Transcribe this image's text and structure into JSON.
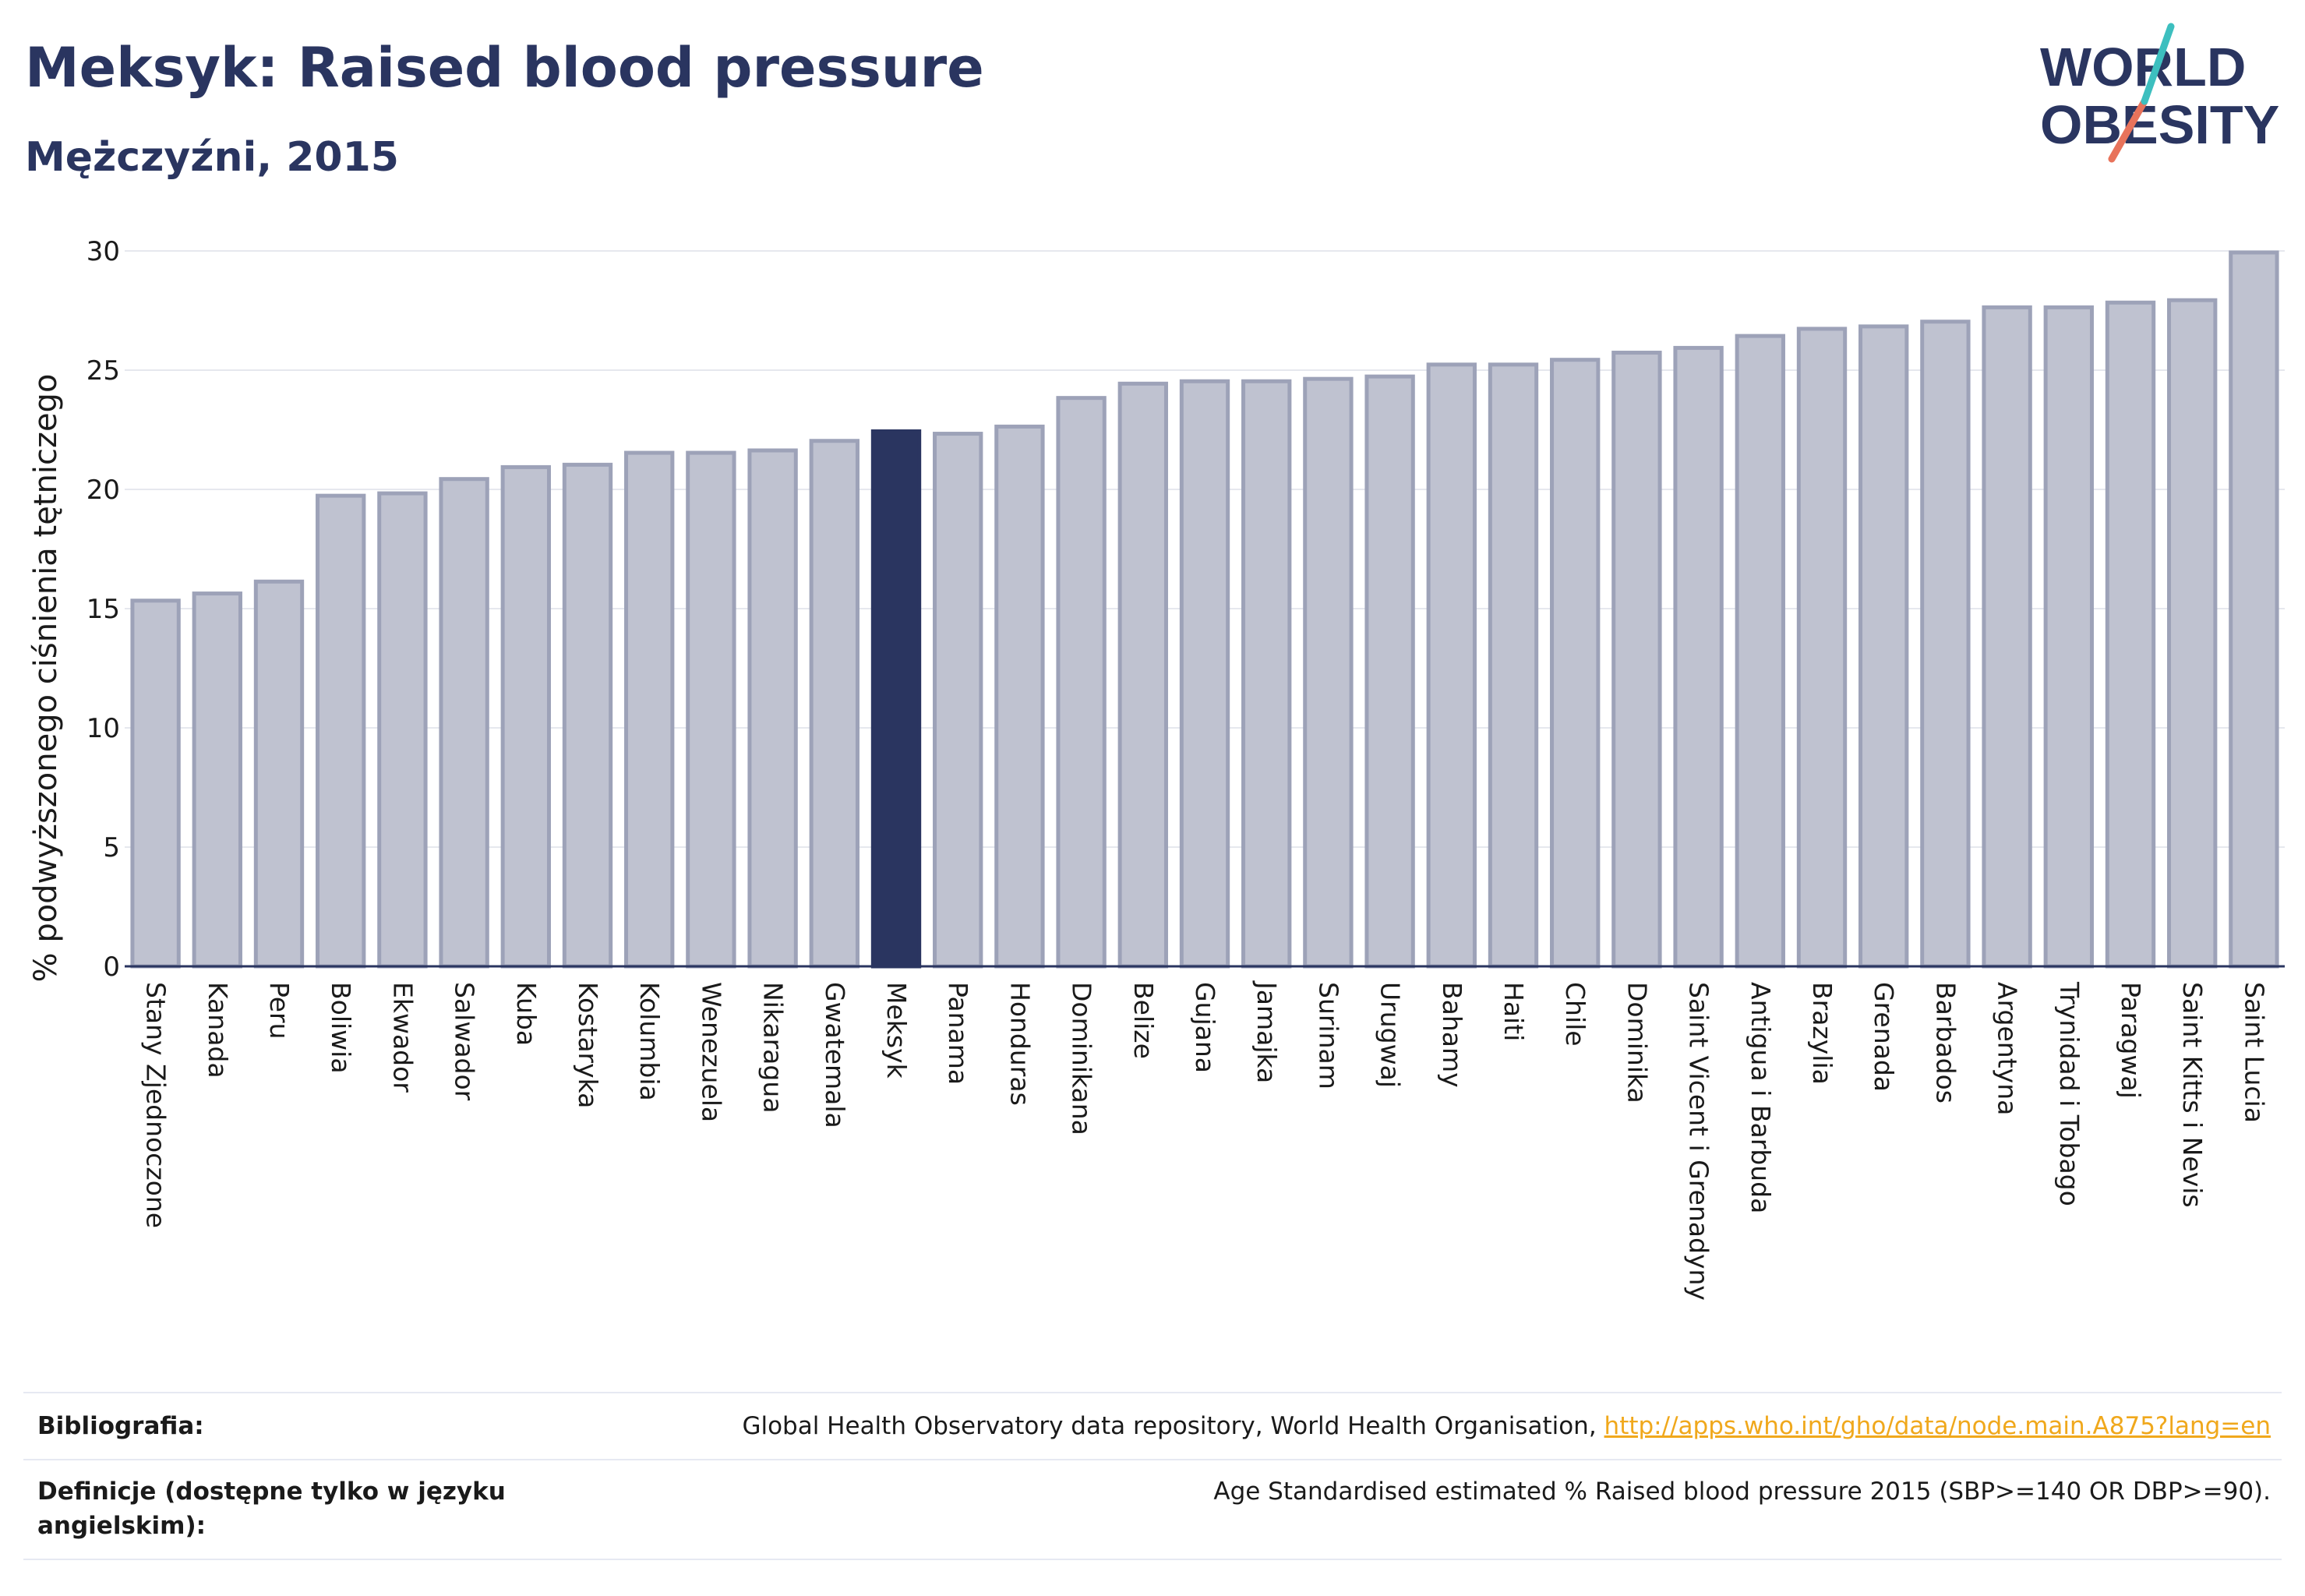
{
  "header": {
    "title": "Meksyk: Raised blood pressure",
    "subtitle": "Mężczyźni, 2015"
  },
  "logo": {
    "line1": "WORLD",
    "line2": "OBESITY"
  },
  "chart_data": {
    "type": "bar",
    "ylabel": "% podwyższonego ciśnienia tętniczego",
    "ylim": [
      0,
      30
    ],
    "yticks": [
      0,
      5,
      10,
      15,
      20,
      25,
      30
    ],
    "grid": true,
    "highlight": "Meksyk",
    "colors": {
      "bar": "#bfc2d0",
      "bar_edge": "#9da2b8",
      "highlight": "#2a3560",
      "grid": "#e6e8ee"
    },
    "categories": [
      "Stany Zjednoczone",
      "Kanada",
      "Peru",
      "Boliwia",
      "Ekwador",
      "Salwador",
      "Kuba",
      "Kostaryka",
      "Kolumbia",
      "Wenezuela",
      "Nikaragua",
      "Gwatemala",
      "Meksyk",
      "Panama",
      "Honduras",
      "Dominikana",
      "Belize",
      "Gujana",
      "Jamajka",
      "Surinam",
      "Urugwaj",
      "Bahamy",
      "Haiti",
      "Chile",
      "Dominika",
      "Saint Vicent i Grenadyny",
      "Antigua i Barbuda",
      "Brazylia",
      "Grenada",
      "Barbados",
      "Argentyna",
      "Trynidad i Tobago",
      "Paragwaj",
      "Saint Kitts i Nevis",
      "Saint Lucia"
    ],
    "values": [
      15.4,
      15.7,
      16.2,
      19.8,
      19.9,
      20.5,
      21.0,
      21.1,
      21.6,
      21.6,
      21.7,
      22.1,
      22.5,
      22.4,
      22.7,
      23.9,
      24.5,
      24.6,
      24.6,
      24.7,
      24.8,
      25.3,
      25.3,
      25.5,
      25.8,
      26.0,
      26.5,
      26.8,
      26.9,
      27.1,
      27.7,
      27.7,
      27.9,
      28.0,
      30.0
    ]
  },
  "footer": {
    "bibliography_label": "Bibliografia:",
    "bibliography_text": "Global Health Observatory data repository, World Health Organisation, ",
    "bibliography_link": "http://apps.who.int/gho/data/node.main.A875?lang=en",
    "definitions_label": "Definicje (dostępne tylko w języku angielskim):",
    "definitions_text": "Age Standardised estimated % Raised blood pressure 2015 (SBP>=140 OR DBP>=90)."
  }
}
